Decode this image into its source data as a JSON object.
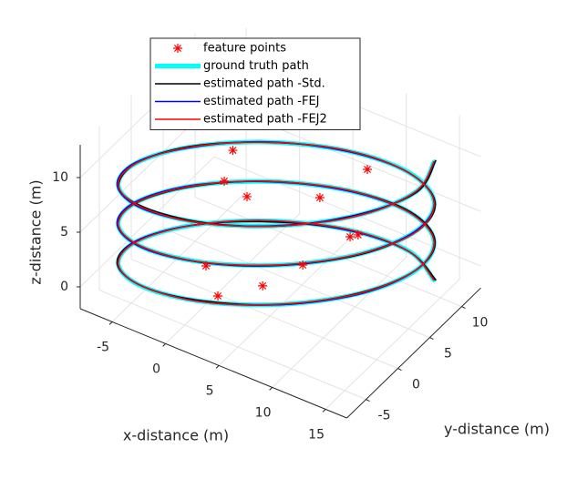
{
  "chart_data": {
    "type": "line3d",
    "xlabel": "x-distance (m)",
    "ylabel": "y-distance (m)",
    "zlabel": "z-distance (m)",
    "xlim": [
      -8,
      17
    ],
    "ylim": [
      -8,
      13
    ],
    "zlim": [
      -2,
      13
    ],
    "xticks": [
      -5,
      0,
      5,
      10,
      15
    ],
    "yticks": [
      -5,
      0,
      5,
      10
    ],
    "zticks": [
      0,
      5,
      10
    ],
    "grid": true,
    "legend_position": "north",
    "points": {
      "name": "feature points",
      "color": "#ff0000",
      "x": [
        -3.5,
        -1.97,
        0.58,
        6.66,
        5.45,
        10.1,
        10.5,
        8.9,
        2.58,
        7.67,
        3.92
      ],
      "y": [
        8.4,
        4.5,
        3.8,
        12.5,
        7.08,
        4.04,
        4.63,
        -1.37,
        -5.97,
        -5.6,
        -6.35
      ],
      "z": [
        5,
        5,
        5,
        5,
        5,
        5,
        5,
        5,
        5,
        5,
        3
      ]
    },
    "series": [
      {
        "name": "ground truth path",
        "color": "#00ffff",
        "width": 5,
        "x": [
          15,
          15.63,
          13.34,
          8.75,
          3.08,
          -2.13,
          -5.5,
          -6.13,
          -3.84,
          0.75,
          6.42,
          11.63,
          15,
          15.63,
          13.34,
          8.75,
          3.08,
          -2.13,
          -5.5,
          -6.13,
          -3.84,
          0.75,
          6.42,
          11.63,
          15,
          15.63,
          13.34,
          8.75,
          3.08,
          -2.13,
          -5.5,
          -6.13,
          -3.84,
          0.75,
          6.42,
          11.63,
          15
        ],
        "y": [
          9,
          5.23,
          0.44,
          -4.1,
          -7.16,
          -7.93,
          -6.2,
          -2.43,
          2.36,
          6.9,
          9.96,
          10.73,
          9,
          5.23,
          0.44,
          -4.1,
          -7.16,
          -7.93,
          -6.2,
          -2.43,
          2.36,
          6.9,
          9.96,
          10.73,
          9,
          5.23,
          0.44,
          -4.1,
          -7.16,
          -7.93,
          -6.2,
          -2.43,
          2.36,
          6.9,
          9.96,
          10.73,
          9
        ],
        "z": [
          11.0,
          10.7,
          10.4,
          10.1,
          9.8,
          9.5,
          9.2,
          8.9,
          8.6,
          8.3,
          8.0,
          7.7,
          7.4,
          7.1,
          6.8,
          6.5,
          6.2,
          5.9,
          5.6,
          5.3,
          5.0,
          4.7,
          4.4,
          4.1,
          3.8,
          3.5,
          3.2,
          2.9,
          2.6,
          2.3,
          2.0,
          1.7,
          1.4,
          1.1,
          0.8,
          0.5,
          0.2
        ]
      },
      {
        "name": "estimated path -Std.",
        "color": "#000000",
        "width": 1.6,
        "x": [
          15.1,
          15.7,
          13.3,
          8.8,
          3.1,
          -2.1,
          -5.4,
          -6.1,
          -3.9,
          0.8,
          6.4,
          11.6,
          15.1,
          15.7,
          13.4,
          8.7,
          3.1,
          -2.2,
          -5.5,
          -6.1,
          -3.8,
          0.7,
          6.5,
          11.7,
          15.1,
          15.6,
          13.3,
          8.8,
          3.0,
          -2.1,
          -5.6,
          -6.2,
          -3.8,
          0.8,
          6.4,
          11.6,
          15.1
        ],
        "y": [
          9.1,
          5.2,
          0.5,
          -4.1,
          -7.1,
          -7.9,
          -6.3,
          -2.4,
          2.4,
          6.9,
          10.0,
          10.7,
          9.0,
          5.3,
          0.4,
          -4.2,
          -7.2,
          -7.9,
          -6.2,
          -2.5,
          2.3,
          6.9,
          10.0,
          10.8,
          9.0,
          5.2,
          0.5,
          -4.1,
          -7.1,
          -7.9,
          -6.2,
          -2.4,
          2.4,
          6.8,
          9.9,
          10.7,
          9.1
        ],
        "z": [
          11.1,
          10.7,
          10.4,
          10.1,
          9.8,
          9.6,
          9.2,
          8.9,
          8.6,
          8.3,
          8.0,
          7.7,
          7.4,
          7.1,
          6.8,
          6.5,
          6.2,
          5.9,
          5.6,
          5.3,
          5.0,
          4.7,
          4.4,
          4.1,
          3.8,
          3.5,
          3.2,
          2.9,
          2.6,
          2.3,
          2.0,
          1.7,
          1.4,
          1.1,
          0.8,
          0.5,
          0.2
        ]
      },
      {
        "name": "estimated path -FEJ",
        "color": "#0000ff",
        "width": 1.6,
        "x": [
          15.0,
          15.6,
          13.3,
          8.7,
          3.1,
          -2.2,
          -5.6,
          -6.2,
          -3.8,
          0.7,
          6.4,
          11.6,
          15.0,
          15.6,
          13.3,
          8.8,
          3.1,
          -2.1,
          -5.6,
          -6.2,
          -3.9,
          0.8,
          6.4,
          11.6,
          15.0,
          15.6,
          13.4,
          8.8,
          3.1,
          -2.2,
          -5.5,
          -6.2,
          -3.9,
          0.7,
          6.4,
          11.6,
          15.0
        ],
        "y": [
          9.0,
          5.2,
          0.4,
          -4.1,
          -7.2,
          -8.0,
          -6.2,
          -2.4,
          2.3,
          6.9,
          9.9,
          10.7,
          9.0,
          5.2,
          0.4,
          -4.1,
          -7.2,
          -8.0,
          -6.2,
          -2.4,
          2.4,
          6.9,
          9.9,
          10.7,
          9.0,
          5.2,
          0.4,
          -4.1,
          -7.2,
          -7.9,
          -6.2,
          -2.4,
          2.3,
          6.9,
          9.9,
          10.7,
          9.0
        ],
        "z": [
          11.0,
          10.7,
          10.4,
          10.1,
          9.8,
          9.5,
          9.2,
          8.9,
          8.6,
          8.3,
          8.0,
          7.7,
          7.4,
          7.1,
          6.8,
          6.5,
          6.2,
          5.9,
          5.6,
          5.3,
          5.0,
          4.7,
          4.4,
          4.1,
          3.8,
          3.5,
          3.2,
          2.9,
          2.6,
          2.3,
          2.0,
          1.7,
          1.4,
          1.1,
          0.8,
          0.5,
          0.2
        ]
      },
      {
        "name": "estimated path -FEJ2",
        "color": "#ff0000",
        "width": 1.6,
        "x": [
          15.0,
          15.6,
          13.4,
          8.8,
          3.1,
          -2.1,
          -5.5,
          -6.1,
          -3.8,
          0.8,
          6.4,
          11.6,
          15.0,
          15.7,
          13.3,
          8.7,
          3.0,
          -2.1,
          -5.5,
          -6.1,
          -3.8,
          0.7,
          6.4,
          11.6,
          15.0,
          15.6,
          13.3,
          8.7,
          3.1,
          -2.1,
          -5.5,
          -6.1,
          -3.8,
          0.7,
          6.4,
          11.6,
          15.0
        ],
        "y": [
          9.0,
          5.2,
          0.4,
          -4.1,
          -7.2,
          -7.9,
          -6.2,
          -2.4,
          2.4,
          6.9,
          10.0,
          10.7,
          9.0,
          5.2,
          0.4,
          -4.1,
          -7.2,
          -7.9,
          -6.2,
          -2.4,
          2.4,
          6.9,
          10.0,
          10.7,
          9.0,
          5.2,
          0.4,
          -4.1,
          -7.2,
          -7.9,
          -6.2,
          -2.4,
          2.4,
          6.9,
          10.0,
          10.7,
          9.0
        ],
        "z": [
          11.0,
          10.7,
          10.4,
          10.1,
          9.8,
          9.5,
          9.2,
          8.9,
          8.6,
          8.3,
          8.0,
          7.7,
          7.4,
          7.1,
          6.8,
          6.5,
          6.2,
          5.9,
          5.6,
          5.3,
          5.0,
          4.7,
          4.4,
          4.1,
          3.8,
          3.5,
          3.2,
          2.9,
          2.6,
          2.3,
          2.0,
          1.7,
          1.4,
          1.1,
          0.8,
          0.5,
          0.2
        ]
      }
    ]
  }
}
